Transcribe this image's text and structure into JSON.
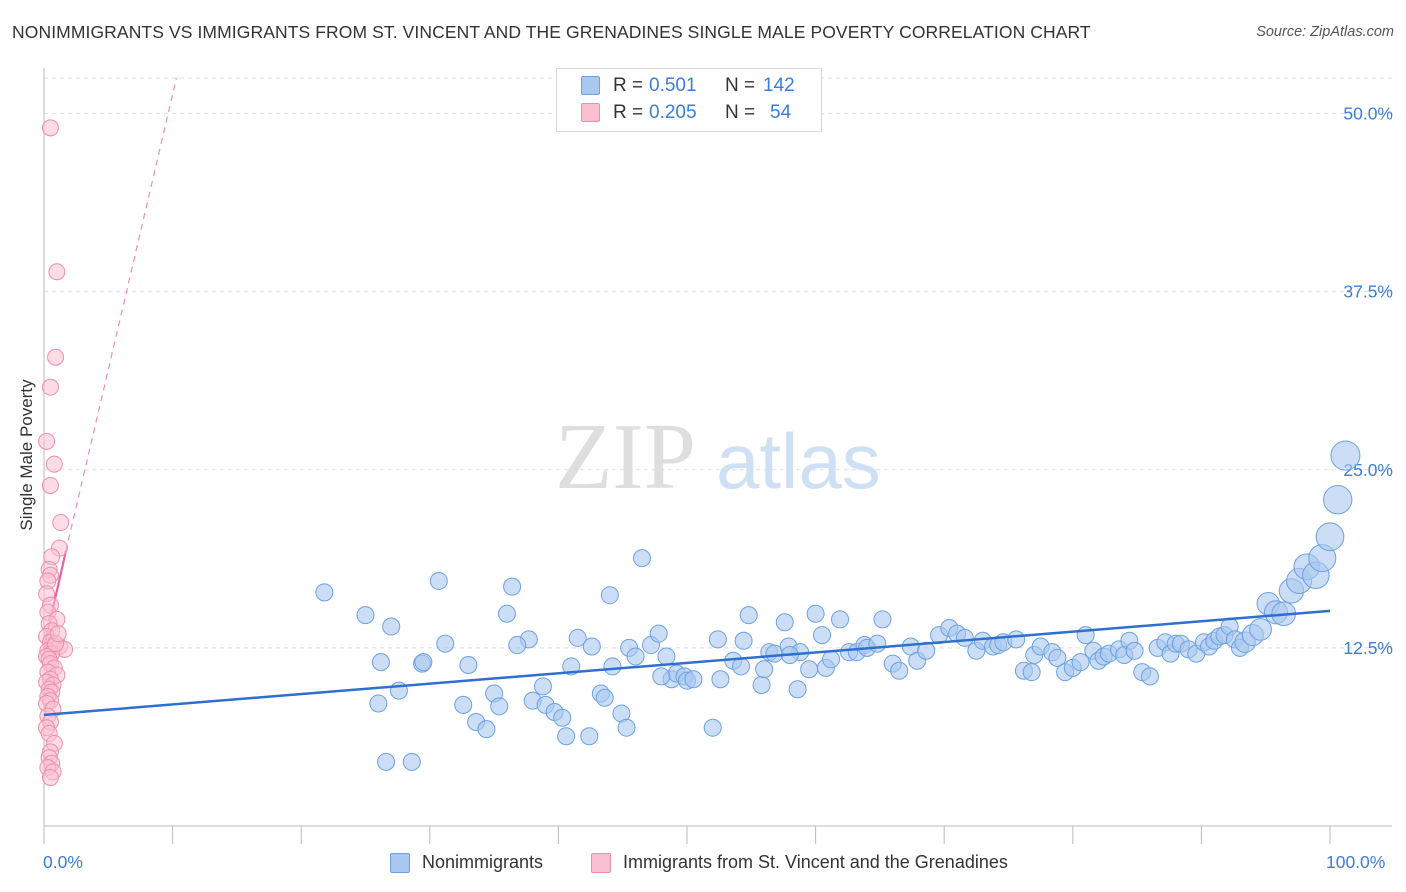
{
  "title": "NONIMMIGRANTS VS IMMIGRANTS FROM ST. VINCENT AND THE GRENADINES SINGLE MALE POVERTY CORRELATION CHART",
  "source": "Source: ZipAtlas.com",
  "watermark": {
    "zip": "ZIP",
    "atlas": "atlas"
  },
  "legend": {
    "rows": [
      {
        "r_label": "R =",
        "r_value": "0.501",
        "n_label": "N =",
        "n_value": "142",
        "color": "#a9c8f0",
        "border": "#6ea1e0"
      },
      {
        "r_label": "R =",
        "r_value": "0.205",
        "n_label": "N =",
        "n_value": "54",
        "color": "#f9bfd0",
        "border": "#ec8fae"
      }
    ]
  },
  "bottom_legend": {
    "items": [
      {
        "label": "Nonimmigrants",
        "color": "#a9c8f0",
        "border": "#6ea1e0"
      },
      {
        "label": "Immigrants from St. Vincent and the Grenadines",
        "color": "#f9bfd0",
        "border": "#ec8fae"
      }
    ]
  },
  "chart_data": {
    "type": "scatter",
    "title": "NONIMMIGRANTS VS IMMIGRANTS FROM ST. VINCENT AND THE GRENADINES SINGLE MALE POVERTY CORRELATION CHART",
    "ylabel": "Single Male Poverty",
    "xlabel": "",
    "xlim": [
      0,
      100
    ],
    "ylim": [
      0,
      52.5
    ],
    "x_tick_labels": {
      "min": "0.0%",
      "max": "100.0%"
    },
    "y_ticks": [
      12.5,
      25.0,
      37.5,
      50.0
    ],
    "y_tick_labels": [
      "12.5%",
      "25.0%",
      "37.5%",
      "50.0%"
    ],
    "grid": "horizontal dashed",
    "legend_position": "top-center",
    "series": [
      {
        "name": "Nonimmigrants",
        "color": "#6ea1e0",
        "fill": "#a9c8f0",
        "R": 0.501,
        "N": 142,
        "trend": {
          "x": [
            0,
            100
          ],
          "y": [
            7.8,
            15.1
          ]
        },
        "points": [
          [
            21.8,
            16.4
          ],
          [
            25.0,
            14.8
          ],
          [
            26.0,
            8.6
          ],
          [
            26.2,
            11.5
          ],
          [
            26.6,
            4.5
          ],
          [
            27.0,
            14.0
          ],
          [
            27.6,
            9.5
          ],
          [
            28.6,
            4.5
          ],
          [
            29.4,
            11.4
          ],
          [
            29.5,
            11.5
          ],
          [
            30.7,
            17.2
          ],
          [
            31.2,
            12.8
          ],
          [
            32.6,
            8.5
          ],
          [
            33.6,
            7.3
          ],
          [
            34.4,
            6.8
          ],
          [
            35.0,
            9.3
          ],
          [
            35.4,
            8.4
          ],
          [
            36.0,
            14.9
          ],
          [
            36.4,
            16.8
          ],
          [
            37.7,
            13.1
          ],
          [
            38.0,
            8.8
          ],
          [
            38.8,
            9.8
          ],
          [
            39.0,
            8.5
          ],
          [
            39.7,
            8.0
          ],
          [
            40.3,
            7.6
          ],
          [
            40.6,
            6.3
          ],
          [
            41.0,
            11.2
          ],
          [
            41.5,
            13.2
          ],
          [
            42.4,
            6.3
          ],
          [
            42.6,
            12.6
          ],
          [
            43.3,
            9.3
          ],
          [
            43.6,
            9.0
          ],
          [
            44.0,
            16.2
          ],
          [
            44.2,
            11.2
          ],
          [
            44.9,
            7.9
          ],
          [
            45.3,
            6.9
          ],
          [
            45.5,
            12.5
          ],
          [
            46.0,
            11.9
          ],
          [
            46.5,
            18.8
          ],
          [
            47.2,
            12.7
          ],
          [
            47.8,
            13.5
          ],
          [
            48.4,
            11.9
          ],
          [
            48.8,
            10.3
          ],
          [
            49.2,
            10.7
          ],
          [
            49.8,
            10.5
          ],
          [
            50.0,
            10.2
          ],
          [
            50.5,
            10.3
          ],
          [
            52.0,
            6.9
          ],
          [
            52.4,
            13.1
          ],
          [
            52.6,
            10.3
          ],
          [
            53.6,
            11.6
          ],
          [
            54.2,
            11.2
          ],
          [
            54.4,
            13.0
          ],
          [
            54.8,
            14.8
          ],
          [
            55.8,
            9.9
          ],
          [
            56.0,
            11.0
          ],
          [
            56.4,
            12.2
          ],
          [
            56.8,
            12.1
          ],
          [
            57.6,
            14.3
          ],
          [
            57.9,
            12.6
          ],
          [
            58.6,
            9.6
          ],
          [
            58.8,
            12.2
          ],
          [
            59.5,
            11.0
          ],
          [
            60.0,
            14.9
          ],
          [
            60.5,
            13.4
          ],
          [
            60.8,
            11.1
          ],
          [
            61.2,
            11.7
          ],
          [
            61.9,
            14.5
          ],
          [
            62.6,
            12.2
          ],
          [
            63.2,
            12.2
          ],
          [
            63.8,
            12.7
          ],
          [
            64.0,
            12.5
          ],
          [
            64.8,
            12.8
          ],
          [
            65.2,
            14.5
          ],
          [
            66.0,
            11.4
          ],
          [
            66.5,
            10.9
          ],
          [
            67.4,
            12.6
          ],
          [
            67.9,
            11.6
          ],
          [
            68.6,
            12.3
          ],
          [
            69.6,
            13.4
          ],
          [
            70.4,
            13.9
          ],
          [
            71.0,
            13.5
          ],
          [
            71.6,
            13.2
          ],
          [
            72.5,
            12.3
          ],
          [
            73.0,
            13.0
          ],
          [
            73.8,
            12.6
          ],
          [
            74.2,
            12.7
          ],
          [
            74.6,
            12.9
          ],
          [
            75.6,
            13.1
          ],
          [
            76.2,
            10.9
          ],
          [
            76.8,
            10.8
          ],
          [
            77.0,
            12.0
          ],
          [
            77.5,
            12.6
          ],
          [
            78.4,
            12.2
          ],
          [
            78.8,
            11.8
          ],
          [
            79.4,
            10.8
          ],
          [
            80.0,
            11.1
          ],
          [
            80.6,
            11.5
          ],
          [
            81.0,
            13.4
          ],
          [
            81.6,
            12.3
          ],
          [
            82.0,
            11.6
          ],
          [
            82.4,
            11.9
          ],
          [
            82.8,
            12.1
          ],
          [
            83.6,
            12.4
          ],
          [
            84.0,
            12.0
          ],
          [
            84.4,
            13.0
          ],
          [
            84.8,
            12.3
          ],
          [
            85.4,
            10.8
          ],
          [
            86.0,
            10.5
          ],
          [
            86.6,
            12.5
          ],
          [
            87.2,
            12.9
          ],
          [
            87.6,
            12.1
          ],
          [
            88.0,
            12.8
          ],
          [
            88.4,
            12.8
          ],
          [
            89.0,
            12.4
          ],
          [
            89.6,
            12.1
          ],
          [
            90.2,
            12.9
          ],
          [
            90.6,
            12.6
          ],
          [
            91.0,
            13.0
          ],
          [
            91.4,
            13.3
          ],
          [
            91.8,
            13.4
          ],
          [
            92.2,
            14.0
          ],
          [
            92.6,
            13.1
          ],
          [
            93.0,
            12.5
          ],
          [
            93.4,
            12.9
          ],
          [
            94.0,
            13.4
          ],
          [
            94.6,
            13.8
          ],
          [
            95.2,
            15.6
          ],
          [
            95.8,
            15.0
          ],
          [
            96.4,
            14.9
          ],
          [
            97.0,
            16.5
          ],
          [
            97.6,
            17.2
          ],
          [
            98.2,
            18.2
          ],
          [
            98.9,
            17.6
          ],
          [
            99.4,
            18.8
          ],
          [
            100.0,
            20.3
          ],
          [
            100.6,
            22.9
          ],
          [
            101.2,
            26.0
          ],
          [
            36.8,
            12.7
          ],
          [
            33.0,
            11.3
          ],
          [
            48.0,
            10.5
          ],
          [
            58.0,
            12.0
          ]
        ]
      },
      {
        "name": "Immigrants from St. Vincent and the Grenadines",
        "color": "#ec8fae",
        "fill": "#f9bfd0",
        "R": 0.205,
        "N": 54,
        "trend": {
          "x": [
            0,
            1.7
          ],
          "y": [
            12.5,
            19.3
          ]
        },
        "trend_extended": {
          "x": [
            1.7,
            10.3
          ],
          "y": [
            19.3,
            52.5
          ]
        },
        "points": [
          [
            0.5,
            49.0
          ],
          [
            1.0,
            38.9
          ],
          [
            0.9,
            32.9
          ],
          [
            0.5,
            30.8
          ],
          [
            0.2,
            27.0
          ],
          [
            0.8,
            25.4
          ],
          [
            0.5,
            23.9
          ],
          [
            1.3,
            21.3
          ],
          [
            1.2,
            19.5
          ],
          [
            0.6,
            18.9
          ],
          [
            0.4,
            18.0
          ],
          [
            0.5,
            17.6
          ],
          [
            0.3,
            17.2
          ],
          [
            0.2,
            16.3
          ],
          [
            0.5,
            15.5
          ],
          [
            0.3,
            15.0
          ],
          [
            1.0,
            14.5
          ],
          [
            0.4,
            14.2
          ],
          [
            0.6,
            13.7
          ],
          [
            0.2,
            13.3
          ],
          [
            0.5,
            12.9
          ],
          [
            0.8,
            12.6
          ],
          [
            1.2,
            12.6
          ],
          [
            1.6,
            12.4
          ],
          [
            0.3,
            12.3
          ],
          [
            0.6,
            12.1
          ],
          [
            0.2,
            11.9
          ],
          [
            0.4,
            11.7
          ],
          [
            0.5,
            11.4
          ],
          [
            0.8,
            11.1
          ],
          [
            0.3,
            10.8
          ],
          [
            1.0,
            10.6
          ],
          [
            0.5,
            10.3
          ],
          [
            0.2,
            10.1
          ],
          [
            0.7,
            9.9
          ],
          [
            0.4,
            9.6
          ],
          [
            0.6,
            9.4
          ],
          [
            0.3,
            9.1
          ],
          [
            0.5,
            8.8
          ],
          [
            0.2,
            8.6
          ],
          [
            0.7,
            8.2
          ],
          [
            0.3,
            7.7
          ],
          [
            0.5,
            7.3
          ],
          [
            0.2,
            6.9
          ],
          [
            0.4,
            6.5
          ],
          [
            0.8,
            5.8
          ],
          [
            0.5,
            5.2
          ],
          [
            0.4,
            4.8
          ],
          [
            0.6,
            4.4
          ],
          [
            0.3,
            4.1
          ],
          [
            0.7,
            3.8
          ],
          [
            0.5,
            3.4
          ],
          [
            0.9,
            12.8
          ],
          [
            1.1,
            13.5
          ]
        ]
      }
    ]
  }
}
